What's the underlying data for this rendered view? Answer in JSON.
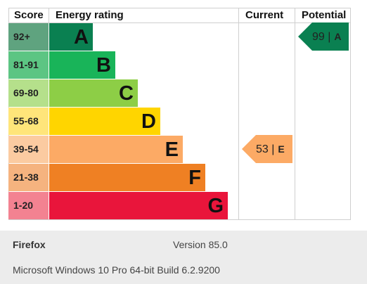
{
  "headers": {
    "score": "Score",
    "energy_rating": "Energy rating",
    "current": "Current",
    "potential": "Potential"
  },
  "bands": [
    {
      "score": "92+",
      "letter": "A",
      "score_bg": "#5fa37f",
      "bar_color": "#0a8051"
    },
    {
      "score": "81-91",
      "letter": "B",
      "score_bg": "#5cc583",
      "bar_color": "#19b459"
    },
    {
      "score": "69-80",
      "letter": "C",
      "score_bg": "#b5e08b",
      "bar_color": "#8dce46"
    },
    {
      "score": "55-68",
      "letter": "D",
      "score_bg": "#ffe57a",
      "bar_color": "#ffd500"
    },
    {
      "score": "39-54",
      "letter": "E",
      "score_bg": "#fbcba1",
      "bar_color": "#fcaa65"
    },
    {
      "score": "21-38",
      "letter": "F",
      "score_bg": "#f5b37f",
      "bar_color": "#ef8023"
    },
    {
      "score": "1-20",
      "letter": "G",
      "score_bg": "#f38291",
      "bar_color": "#e9153b"
    }
  ],
  "current": {
    "value": "53 |",
    "rating": "E",
    "color": "#fcaa65"
  },
  "potential": {
    "value": "99 |",
    "rating": "A",
    "color": "#0a8051"
  },
  "footer": {
    "browser": "Firefox",
    "version": "Version 85.0",
    "os": "Microsoft Windows 10 Pro 64-bit Build 6.2.9200"
  }
}
